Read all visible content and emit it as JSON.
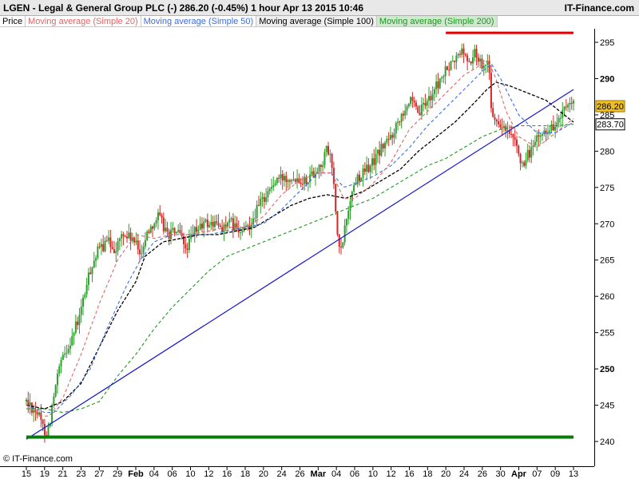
{
  "header": {
    "title_left": "LGEN - Legal & General Group PLC (-)   286.20 (-0.45%)     1 hour  Apr 13 2015 10:46",
    "title_right": "IT-Finance.com"
  },
  "legend": {
    "price": "Price",
    "ma20": "Moving average (Simple 20)",
    "ma50": "Moving average (Simple 50)",
    "ma100": "Moving average (Simple 100)",
    "ma200": "Moving average (Simple 200)"
  },
  "copyright": "© IT-Finance.com",
  "chart_data": {
    "type": "candlestick",
    "title": "LGEN - Legal & General Group PLC (-)",
    "ylim": [
      237.5,
      298
    ],
    "yticks": [
      240,
      245,
      250,
      255,
      260,
      265,
      270,
      275,
      280,
      285,
      290,
      295
    ],
    "xticks": [
      {
        "label": "15",
        "x": 0
      },
      {
        "label": "19",
        "x": 2
      },
      {
        "label": "21",
        "x": 4
      },
      {
        "label": "23",
        "x": 6
      },
      {
        "label": "27",
        "x": 8
      },
      {
        "label": "29",
        "x": 10
      },
      {
        "label": "Feb",
        "x": 12,
        "month": true
      },
      {
        "label": "04",
        "x": 14
      },
      {
        "label": "06",
        "x": 16
      },
      {
        "label": "10",
        "x": 18
      },
      {
        "label": "12",
        "x": 20
      },
      {
        "label": "16",
        "x": 22
      },
      {
        "label": "18",
        "x": 24
      },
      {
        "label": "20",
        "x": 26
      },
      {
        "label": "24",
        "x": 28
      },
      {
        "label": "26",
        "x": 30
      },
      {
        "label": "Mar",
        "x": 32,
        "month": true
      },
      {
        "label": "04",
        "x": 34
      },
      {
        "label": "06",
        "x": 36
      },
      {
        "label": "10",
        "x": 38
      },
      {
        "label": "12",
        "x": 40
      },
      {
        "label": "16",
        "x": 42
      },
      {
        "label": "18",
        "x": 44
      },
      {
        "label": "20",
        "x": 46
      },
      {
        "label": "24",
        "x": 48
      },
      {
        "label": "26",
        "x": 50
      },
      {
        "label": "30",
        "x": 52
      },
      {
        "label": "Apr",
        "x": 54,
        "month": true
      },
      {
        "label": "07",
        "x": 56
      },
      {
        "label": "09",
        "x": 58
      },
      {
        "label": "13",
        "x": 60
      }
    ],
    "last_price": 286.2,
    "last_price_label": "286.20",
    "ma_label": "283.70",
    "ma_value": 283.7,
    "colors": {
      "candle_up": "#2ca02c",
      "candle_down": "#d62728",
      "ma20": "#e06666",
      "ma50": "#3b6de0",
      "ma100": "#000000",
      "ma200": "#1a9a1a",
      "trendline": "#1515d0",
      "resistance": "#e00000",
      "support": "#0a7a0a",
      "price_box": "#f0c020"
    },
    "price_anchors": [
      [
        0,
        245.5
      ],
      [
        1.2,
        244.0
      ],
      [
        1.8,
        242.0
      ],
      [
        2.3,
        241.0
      ],
      [
        3.0,
        246.0
      ],
      [
        3.6,
        250.0
      ],
      [
        4.2,
        252.0
      ],
      [
        5.0,
        254.5
      ],
      [
        5.8,
        257.0
      ],
      [
        6.5,
        261.0
      ],
      [
        7.2,
        264.5
      ],
      [
        8.0,
        266.5
      ],
      [
        9.0,
        267.5
      ],
      [
        9.8,
        266.5
      ],
      [
        10.5,
        268.5
      ],
      [
        11.5,
        268.0
      ],
      [
        12.5,
        266.0
      ],
      [
        13.5,
        269.5
      ],
      [
        14.5,
        271.0
      ],
      [
        15.5,
        268.5
      ],
      [
        16.5,
        269.0
      ],
      [
        17.5,
        266.5
      ],
      [
        18.5,
        269.0
      ],
      [
        19.5,
        270.0
      ],
      [
        20.5,
        270.0
      ],
      [
        21.5,
        269.5
      ],
      [
        22.5,
        270.0
      ],
      [
        23.5,
        268.5
      ],
      [
        24.5,
        270.0
      ],
      [
        25.5,
        272.5
      ],
      [
        26.5,
        274.5
      ],
      [
        27.5,
        276.0
      ],
      [
        28.5,
        276.5
      ],
      [
        29.5,
        276.5
      ],
      [
        30.5,
        276.0
      ],
      [
        31.5,
        277.0
      ],
      [
        32.5,
        278.5
      ],
      [
        33.0,
        280.5
      ],
      [
        33.6,
        277.5
      ],
      [
        34.1,
        268.0
      ],
      [
        34.5,
        266.0
      ],
      [
        35.0,
        270.0
      ],
      [
        35.6,
        274.0
      ],
      [
        36.3,
        276.5
      ],
      [
        37.0,
        277.0
      ],
      [
        38.0,
        278.5
      ],
      [
        39.0,
        280.5
      ],
      [
        40.0,
        282.0
      ],
      [
        41.0,
        285.0
      ],
      [
        42.0,
        287.0
      ],
      [
        43.0,
        285.0
      ],
      [
        44.0,
        287.0
      ],
      [
        45.0,
        289.0
      ],
      [
        46.0,
        291.0
      ],
      [
        47.0,
        292.5
      ],
      [
        47.8,
        294.0
      ],
      [
        48.5,
        292.0
      ],
      [
        49.2,
        293.5
      ],
      [
        50.0,
        292.0
      ],
      [
        50.6,
        293.0
      ],
      [
        51.0,
        286.0
      ],
      [
        51.2,
        284.0
      ],
      [
        52.0,
        283.5
      ],
      [
        53.0,
        282.0
      ],
      [
        54.0,
        280.0
      ],
      [
        54.5,
        277.0
      ],
      [
        55.0,
        279.5
      ],
      [
        56.0,
        281.5
      ],
      [
        57.0,
        283.0
      ],
      [
        58.0,
        283.5
      ],
      [
        59.0,
        285.5
      ],
      [
        60.0,
        286.2
      ]
    ],
    "ma20_anchors": [
      [
        0,
        245.0
      ],
      [
        1.5,
        243.5
      ],
      [
        2.5,
        243.5
      ],
      [
        4,
        246.0
      ],
      [
        6,
        252.0
      ],
      [
        8,
        259.0
      ],
      [
        10,
        265.0
      ],
      [
        12,
        268.5
      ],
      [
        14,
        268.0
      ],
      [
        16,
        268.5
      ],
      [
        18,
        268.5
      ],
      [
        20,
        269.0
      ],
      [
        22,
        269.5
      ],
      [
        24,
        269.5
      ],
      [
        26,
        271.0
      ],
      [
        28,
        274.0
      ],
      [
        30,
        276.0
      ],
      [
        32,
        277.0
      ],
      [
        33.5,
        277.0
      ],
      [
        34.8,
        273.5
      ],
      [
        36,
        273.5
      ],
      [
        38,
        275.5
      ],
      [
        40,
        278.5
      ],
      [
        42,
        283.0
      ],
      [
        44,
        285.5
      ],
      [
        46,
        288.0
      ],
      [
        48,
        290.5
      ],
      [
        50,
        292.0
      ],
      [
        50.6,
        292.5
      ],
      [
        51.5,
        290.0
      ],
      [
        52.6,
        285.5
      ],
      [
        54,
        282.0
      ],
      [
        56,
        280.5
      ],
      [
        58,
        282.5
      ],
      [
        60,
        284.5
      ]
    ],
    "ma50_anchors": [
      [
        0,
        245.0
      ],
      [
        2,
        244.0
      ],
      [
        3,
        244.0
      ],
      [
        5,
        246.5
      ],
      [
        7,
        250.0
      ],
      [
        9,
        256.0
      ],
      [
        11,
        261.5
      ],
      [
        12.5,
        265.0
      ],
      [
        14,
        267.5
      ],
      [
        16,
        268.5
      ],
      [
        18,
        268.5
      ],
      [
        20,
        268.5
      ],
      [
        22,
        269.0
      ],
      [
        24,
        269.5
      ],
      [
        26,
        270.0
      ],
      [
        28,
        272.0
      ],
      [
        30,
        274.5
      ],
      [
        32,
        277.0
      ],
      [
        33.5,
        277.0
      ],
      [
        34.8,
        275.0
      ],
      [
        36,
        275.5
      ],
      [
        38,
        276.5
      ],
      [
        40,
        278.0
      ],
      [
        42,
        280.5
      ],
      [
        44,
        283.5
      ],
      [
        46,
        286.0
      ],
      [
        48,
        288.5
      ],
      [
        50,
        291.0
      ],
      [
        51,
        292.0
      ],
      [
        52,
        290.0
      ],
      [
        53,
        287.5
      ],
      [
        54,
        285.0
      ],
      [
        56,
        282.5
      ],
      [
        58,
        282.5
      ],
      [
        60,
        284.0
      ]
    ],
    "ma100_anchors": [
      [
        0,
        245.0
      ],
      [
        2,
        244.5
      ],
      [
        4,
        245.5
      ],
      [
        6,
        248.0
      ],
      [
        8,
        253.0
      ],
      [
        10,
        258.0
      ],
      [
        12,
        262.0
      ],
      [
        13,
        265.5
      ],
      [
        15,
        267.5
      ],
      [
        17,
        268.0
      ],
      [
        19,
        268.5
      ],
      [
        21,
        268.5
      ],
      [
        23,
        269.0
      ],
      [
        25,
        269.5
      ],
      [
        27,
        271.0
      ],
      [
        29,
        272.5
      ],
      [
        31,
        273.5
      ],
      [
        33,
        274.0
      ],
      [
        35,
        273.5
      ],
      [
        37,
        274.5
      ],
      [
        39,
        276.0
      ],
      [
        41,
        277.5
      ],
      [
        43,
        280.0
      ],
      [
        45,
        282.0
      ],
      [
        47,
        284.0
      ],
      [
        49,
        286.5
      ],
      [
        50.5,
        288.5
      ],
      [
        51.5,
        289.5
      ],
      [
        53,
        289.0
      ],
      [
        55,
        288.0
      ],
      [
        57,
        287.0
      ],
      [
        59,
        285.0
      ],
      [
        60,
        284.0
      ]
    ],
    "ma200_anchors": [
      [
        0,
        244.5
      ],
      [
        2,
        244.5
      ],
      [
        4,
        244.0
      ],
      [
        6,
        244.5
      ],
      [
        8,
        245.5
      ],
      [
        10,
        249.0
      ],
      [
        12,
        252.0
      ],
      [
        14,
        255.5
      ],
      [
        16,
        258.5
      ],
      [
        18,
        261.0
      ],
      [
        20,
        263.5
      ],
      [
        22,
        265.5
      ],
      [
        24,
        266.5
      ],
      [
        26,
        267.5
      ],
      [
        28,
        268.5
      ],
      [
        30,
        269.5
      ],
      [
        32,
        270.5
      ],
      [
        34,
        271.5
      ],
      [
        36,
        272.5
      ],
      [
        38,
        273.5
      ],
      [
        40,
        275.0
      ],
      [
        42,
        276.5
      ],
      [
        44,
        278.0
      ],
      [
        46,
        279.0
      ],
      [
        48,
        280.5
      ],
      [
        50,
        282.0
      ],
      [
        52,
        283.0
      ],
      [
        54,
        283.5
      ],
      [
        56,
        283.5
      ],
      [
        58,
        283.5
      ],
      [
        60,
        283.7
      ]
    ],
    "trendline": {
      "from": [
        0,
        240.3
      ],
      "to": [
        60,
        288.5
      ]
    },
    "resistance": {
      "from": [
        46,
        296.3
      ],
      "to": [
        60,
        296.3
      ]
    },
    "support": {
      "from": [
        0,
        240.6
      ],
      "to": [
        60,
        240.6
      ]
    }
  }
}
